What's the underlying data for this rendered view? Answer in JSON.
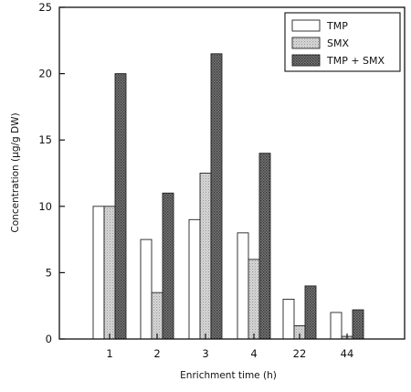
{
  "chart_data": {
    "type": "bar",
    "title": "",
    "xlabel": "Enrichment time (h)",
    "ylabel": "Concentration (µg/g DW)",
    "ylim": [
      0,
      25
    ],
    "yticks": [
      0,
      5,
      10,
      15,
      20,
      25
    ],
    "grid": false,
    "legend_position": "top-right",
    "categories": [
      "1",
      "2",
      "3",
      "4",
      "22",
      "44"
    ],
    "series": [
      {
        "name": "TMP",
        "values": [
          10,
          7.5,
          9,
          8,
          3,
          2
        ],
        "fill": "#ffffff"
      },
      {
        "name": "SMX",
        "values": [
          10,
          3.5,
          12.5,
          6,
          1,
          0.2
        ],
        "fill": "#c8c8c8"
      },
      {
        "name": "TMP + SMX",
        "values": [
          20,
          11,
          21.5,
          14,
          4,
          2.2
        ],
        "fill": "#6a6a6a"
      }
    ]
  }
}
